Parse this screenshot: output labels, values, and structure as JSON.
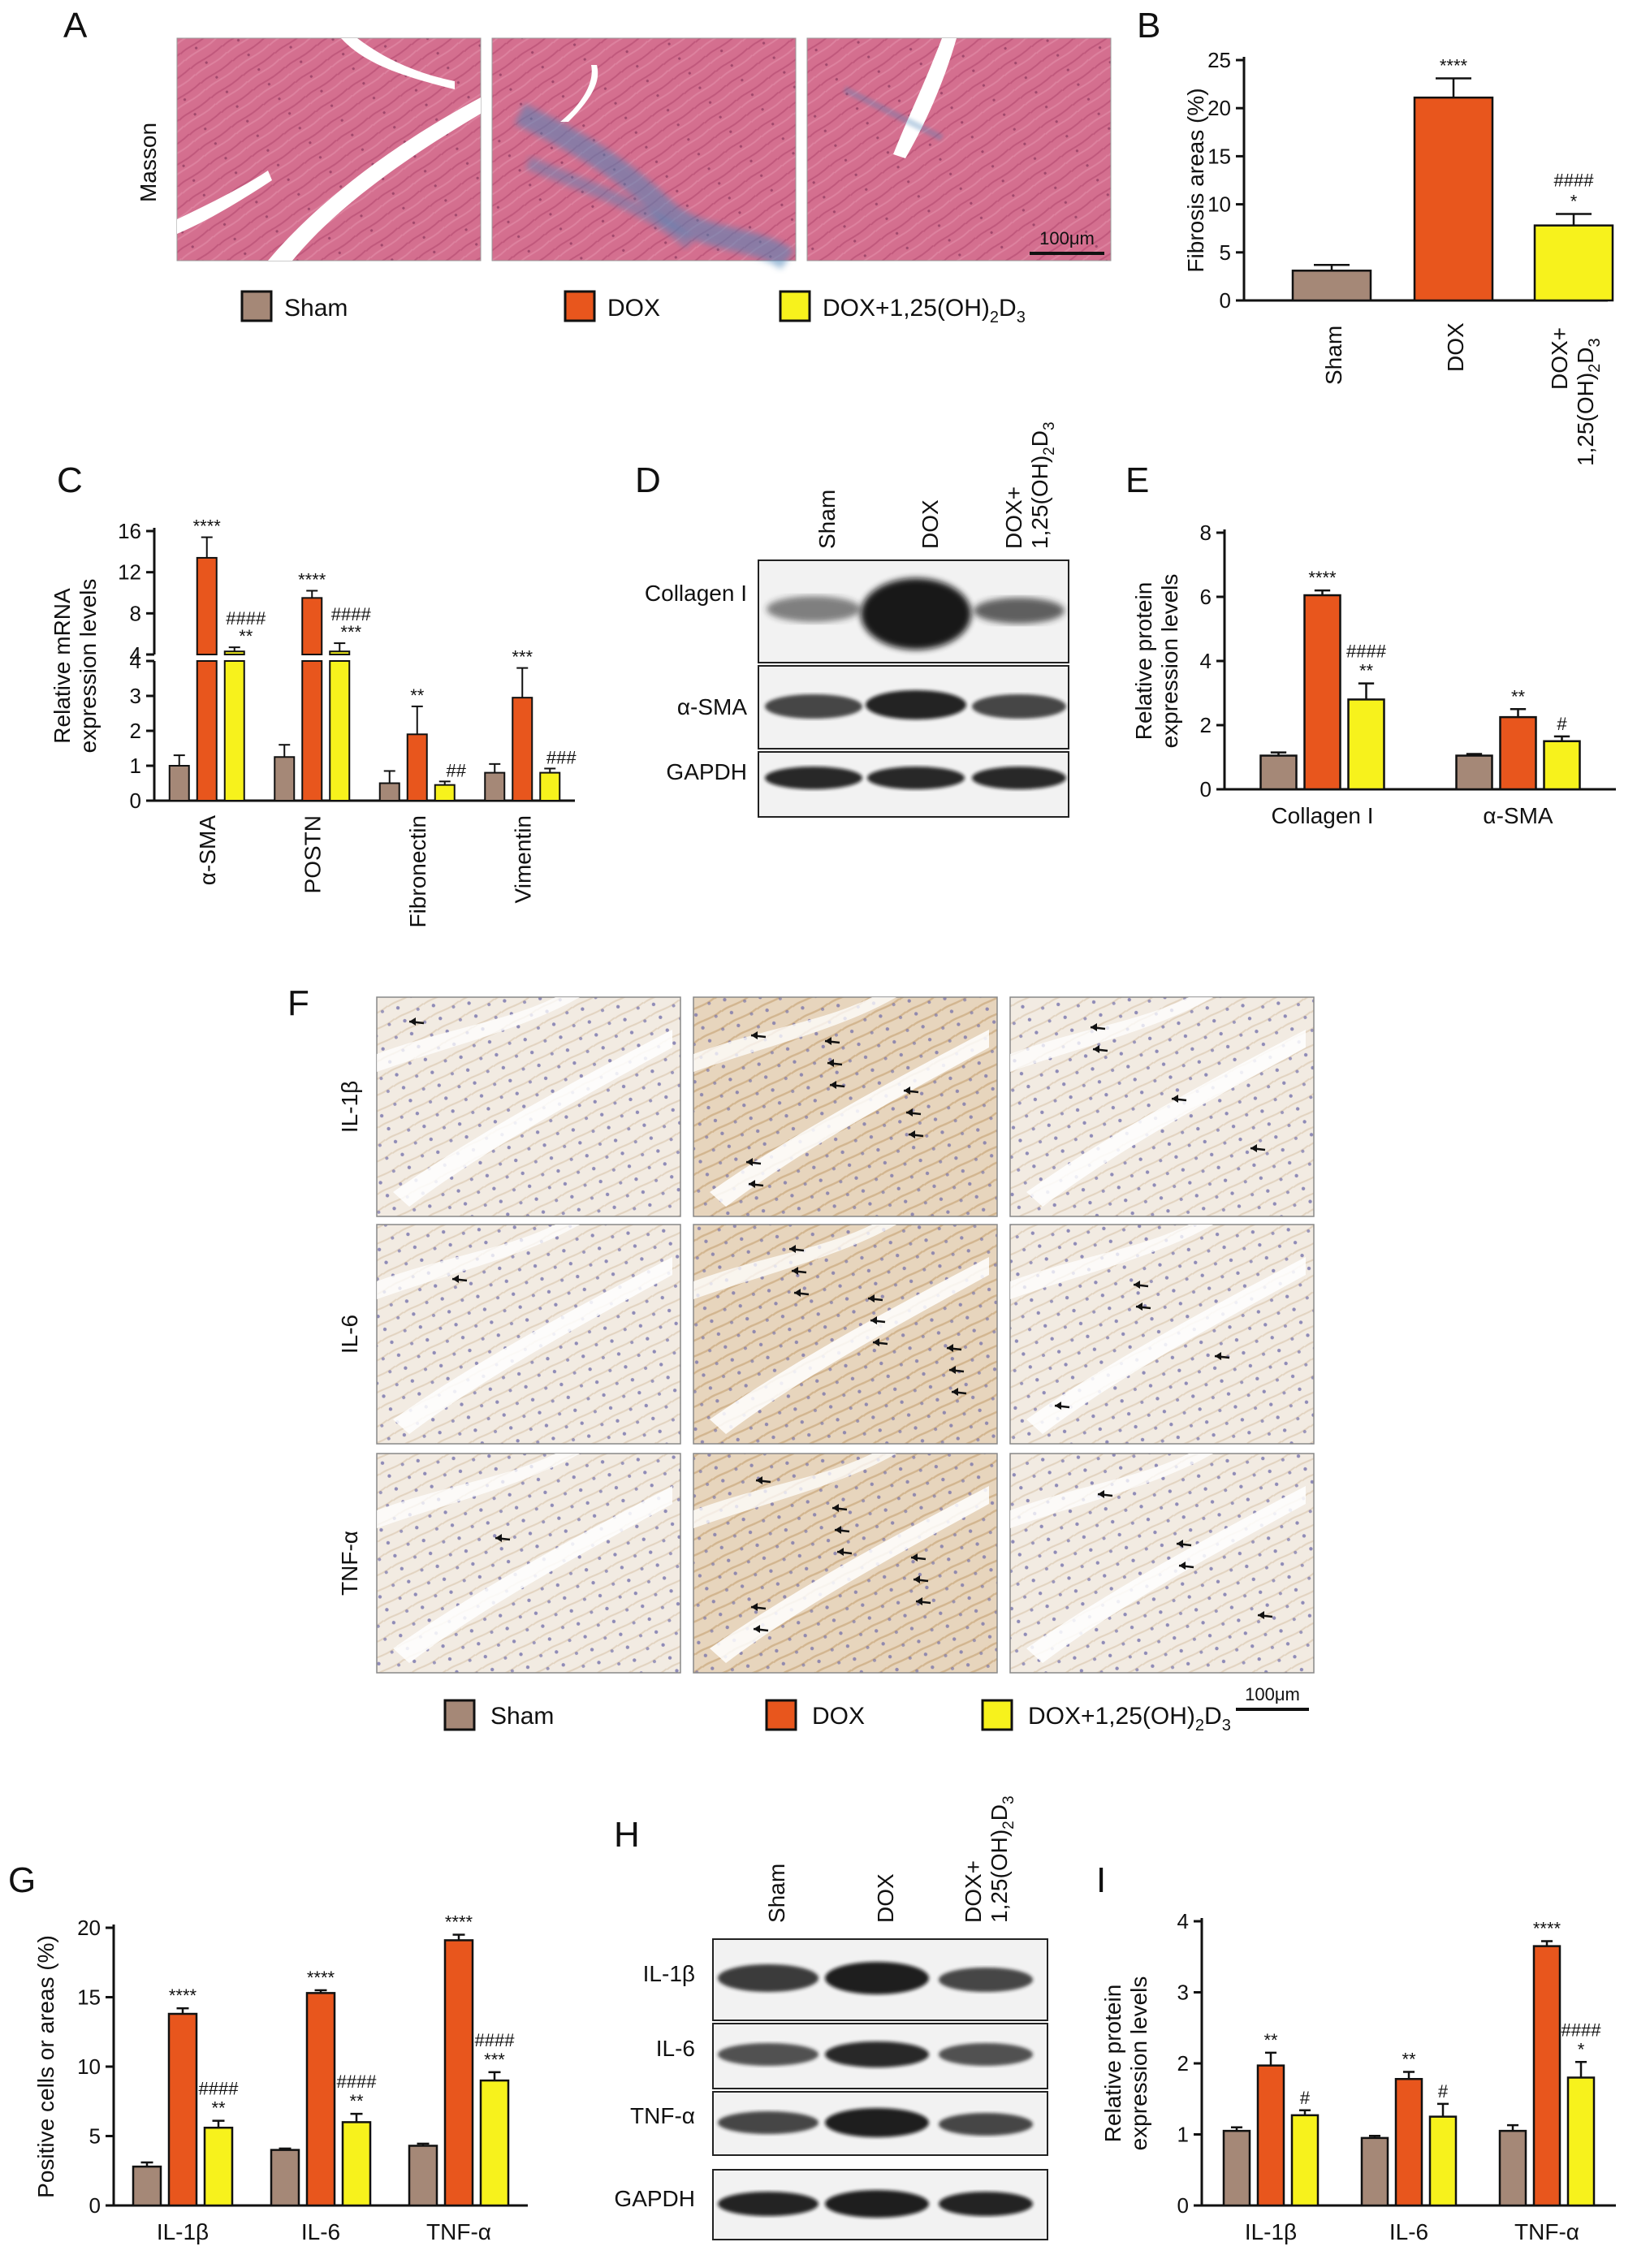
{
  "colors": {
    "sham": "#a58877",
    "dox": "#e8561d",
    "vd": "#f7f21c",
    "axis": "#111111",
    "masson_bg": "#d36a8c",
    "masson_fiber": "#4f86b8",
    "ihc_bg": "#f3ece3",
    "ihc_stain": "#c9a77a",
    "ihc_nuclei": "#5b5b9a",
    "blot_band": "#202020"
  },
  "legend": {
    "sham": "Sham",
    "dox": "DOX",
    "vd_main": "DOX+1,25(OH)",
    "vd_sub1": "2",
    "vd_mid": "D",
    "vd_sub2": "3"
  },
  "panels": {
    "A": {
      "letter": "A",
      "row_label": "Masson",
      "scale_bar": "100μm"
    },
    "B": {
      "letter": "B"
    },
    "C": {
      "letter": "C"
    },
    "D": {
      "letter": "D",
      "lanes": {
        "sham": "Sham",
        "dox": "DOX",
        "vd_line1": "DOX+",
        "vd_line2": "1,25(OH)",
        "vd_sub1": "2",
        "vd_mid": "D",
        "vd_sub2": "3"
      },
      "bands": [
        "Collagen I",
        "α-SMA",
        "GAPDH"
      ]
    },
    "E": {
      "letter": "E"
    },
    "F": {
      "letter": "F",
      "rows": [
        "IL-1β",
        "IL-6",
        "TNF-α"
      ],
      "scale_bar": "100μm"
    },
    "G": {
      "letter": "G"
    },
    "H": {
      "letter": "H",
      "lanes": {
        "sham": "Sham",
        "dox": "DOX",
        "vd_line1": "DOX+",
        "vd_line2": "1,25(OH)",
        "vd_sub1": "2",
        "vd_mid": "D",
        "vd_sub2": "3"
      },
      "bands": [
        "IL-1β",
        "IL-6",
        "TNF-α",
        "GAPDH"
      ]
    },
    "I": {
      "letter": "I"
    }
  },
  "chart_data": [
    {
      "id": "B",
      "type": "bar",
      "ylabel": "Fibrosis areas (%)",
      "ylim": [
        0,
        25
      ],
      "yticks": [
        0,
        5,
        10,
        15,
        20,
        25
      ],
      "categories": [
        "Sham",
        "DOX",
        "DOX+1,25(OH)2D3"
      ],
      "values": [
        3.1,
        21.1,
        7.8
      ],
      "errors": [
        0.6,
        2.0,
        1.2
      ],
      "significance": [
        [],
        [
          "****"
        ],
        [
          "####",
          "*"
        ]
      ]
    },
    {
      "id": "C",
      "type": "bar",
      "ylabel_line1": "Relative mRNA",
      "ylabel_line2": "expression levels",
      "broken_axis": true,
      "ylim_lower": [
        0,
        4
      ],
      "yticks_lower": [
        0,
        1,
        2,
        3,
        4
      ],
      "ylim_upper": [
        4,
        16
      ],
      "yticks_upper": [
        4,
        8,
        12,
        16
      ],
      "categories": [
        "α-SMA",
        "POSTN",
        "Fibronectin",
        "Vimentin"
      ],
      "series": [
        {
          "name": "Sham",
          "values": [
            1.0,
            1.25,
            0.5,
            0.8
          ],
          "errors": [
            0.3,
            0.35,
            0.35,
            0.25
          ]
        },
        {
          "name": "DOX",
          "values": [
            13.4,
            9.5,
            1.9,
            2.95
          ],
          "errors": [
            2.0,
            0.7,
            0.8,
            0.85
          ]
        },
        {
          "name": "DOX+1,25(OH)2D3",
          "values": [
            4.3,
            4.3,
            0.45,
            0.8
          ],
          "errors": [
            0.4,
            0.8,
            0.1,
            0.12
          ]
        }
      ],
      "significance": [
        [
          [],
          [
            "****"
          ],
          [
            "####",
            "**"
          ]
        ],
        [
          [],
          [
            "****"
          ],
          [
            "####",
            "***"
          ]
        ],
        [
          [],
          [
            "**"
          ],
          [
            "##"
          ]
        ],
        [
          [],
          [
            "***"
          ],
          [
            "###"
          ]
        ]
      ]
    },
    {
      "id": "E",
      "type": "bar",
      "ylabel_line1": "Relative protein",
      "ylabel_line2": "expression levels",
      "ylim": [
        0,
        8
      ],
      "yticks": [
        0,
        2,
        4,
        6,
        8
      ],
      "categories": [
        "Collagen I",
        "α-SMA"
      ],
      "series": [
        {
          "name": "Sham",
          "values": [
            1.05,
            1.05
          ],
          "errors": [
            0.1,
            0.05
          ]
        },
        {
          "name": "DOX",
          "values": [
            6.05,
            2.25
          ],
          "errors": [
            0.15,
            0.25
          ]
        },
        {
          "name": "DOX+1,25(OH)2D3",
          "values": [
            2.8,
            1.5
          ],
          "errors": [
            0.5,
            0.15
          ]
        }
      ],
      "significance": [
        [
          [],
          [
            "****"
          ],
          [
            "####",
            "**"
          ]
        ],
        [
          [],
          [
            "**"
          ],
          [
            "#"
          ]
        ]
      ]
    },
    {
      "id": "G",
      "type": "bar",
      "ylabel": "Positive cells or areas (%)",
      "ylim": [
        0,
        20
      ],
      "yticks": [
        0,
        5,
        10,
        15,
        20
      ],
      "categories": [
        "IL-1β",
        "IL-6",
        "TNF-α"
      ],
      "series": [
        {
          "name": "Sham",
          "values": [
            2.8,
            4.0,
            4.3
          ],
          "errors": [
            0.3,
            0.1,
            0.15
          ]
        },
        {
          "name": "DOX",
          "values": [
            13.8,
            15.3,
            19.1
          ],
          "errors": [
            0.4,
            0.2,
            0.4
          ]
        },
        {
          "name": "DOX+1,25(OH)2D3",
          "values": [
            5.6,
            6.0,
            9.0
          ],
          "errors": [
            0.5,
            0.6,
            0.6
          ]
        }
      ],
      "significance": [
        [
          [],
          [
            "****"
          ],
          [
            "####",
            "**"
          ]
        ],
        [
          [],
          [
            "****"
          ],
          [
            "####",
            "**"
          ]
        ],
        [
          [],
          [
            "****"
          ],
          [
            "####",
            "***"
          ]
        ]
      ]
    },
    {
      "id": "I",
      "type": "bar",
      "ylabel_line1": "Relative protein",
      "ylabel_line2": "expression levels",
      "ylim": [
        0,
        4
      ],
      "yticks": [
        0,
        1,
        2,
        3,
        4
      ],
      "categories": [
        "IL-1β",
        "IL-6",
        "TNF-α"
      ],
      "series": [
        {
          "name": "Sham",
          "values": [
            1.05,
            0.95,
            1.05
          ],
          "errors": [
            0.05,
            0.03,
            0.08
          ]
        },
        {
          "name": "DOX",
          "values": [
            1.97,
            1.78,
            3.65
          ],
          "errors": [
            0.18,
            0.1,
            0.07
          ]
        },
        {
          "name": "DOX+1,25(OH)2D3",
          "values": [
            1.27,
            1.25,
            1.8
          ],
          "errors": [
            0.07,
            0.18,
            0.22
          ]
        }
      ],
      "significance": [
        [
          [],
          [
            "**"
          ],
          [
            "#"
          ]
        ],
        [
          [],
          [
            "**"
          ],
          [
            "#"
          ]
        ],
        [
          [],
          [
            "****"
          ],
          [
            "####",
            "*"
          ]
        ]
      ]
    }
  ]
}
